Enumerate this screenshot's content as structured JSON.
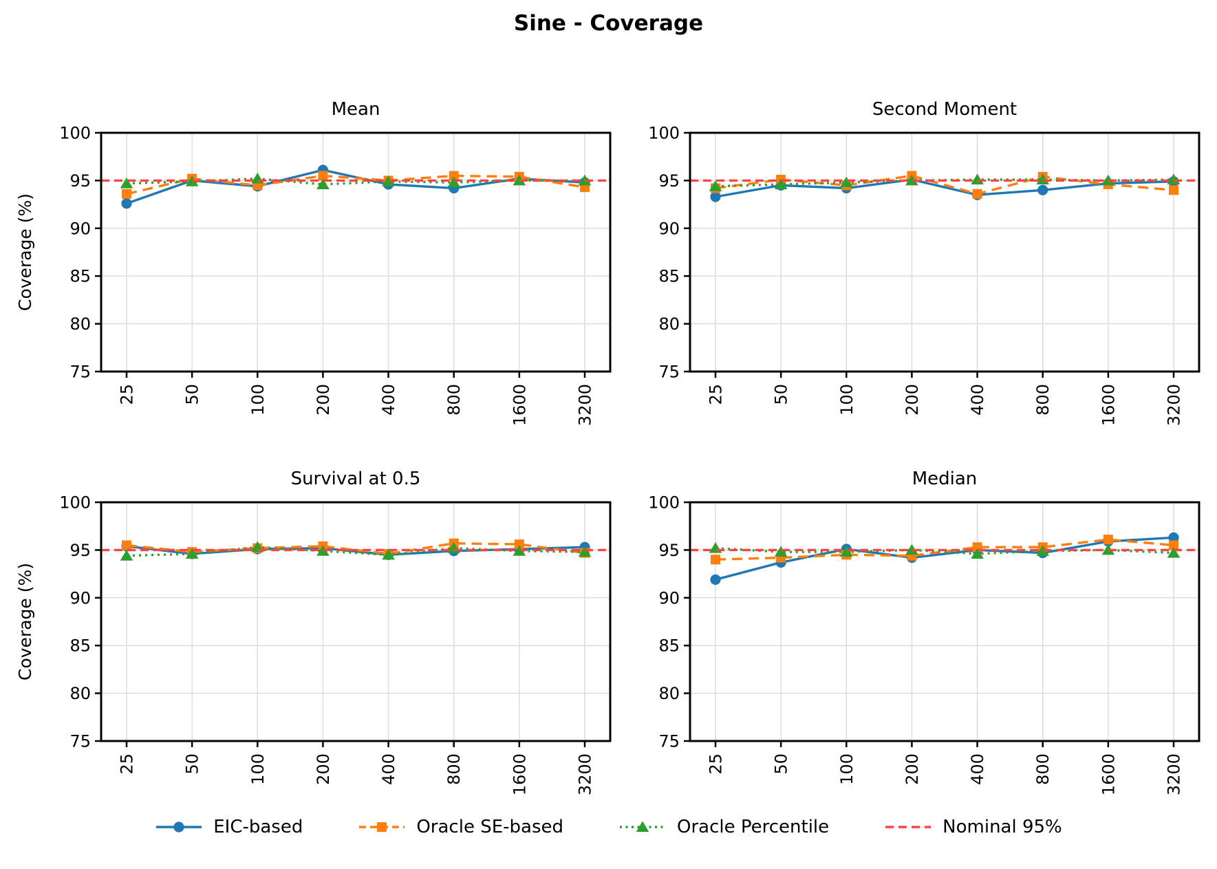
{
  "figure_title": "Sine - Coverage",
  "y_axis_label": "Coverage (%)",
  "colors": {
    "eic_based": "#1f77b4",
    "oracle_se_based": "#ff7f0e",
    "oracle_percentile": "#2ca02c",
    "nominal": "#ff4444",
    "grid": "#dcdcdc",
    "spine": "#000000",
    "text": "#000000",
    "background": "#ffffff"
  },
  "legend": {
    "items": [
      {
        "label": "EIC-based",
        "series": "eic_based",
        "marker": "circle",
        "linestyle": "solid"
      },
      {
        "label": "Oracle SE-based",
        "series": "oracle_se_based",
        "marker": "square",
        "linestyle": "dashed"
      },
      {
        "label": "Oracle Percentile",
        "series": "oracle_percentile",
        "marker": "triangle",
        "linestyle": "dotted"
      },
      {
        "label": "Nominal 95%",
        "series": "nominal",
        "marker": "none",
        "linestyle": "dashed"
      }
    ]
  },
  "chart_data": [
    {
      "type": "line",
      "title": "Mean",
      "position": "top-left",
      "show_ylabel": true,
      "ylabel": "Coverage (%)",
      "xlabel": "",
      "categories": [
        "25",
        "50",
        "100",
        "200",
        "400",
        "800",
        "1600",
        "3200"
      ],
      "ylim": [
        75,
        100
      ],
      "yticks": [
        75,
        80,
        85,
        90,
        95,
        100
      ],
      "grid": true,
      "nominal_line": {
        "label": "Nominal 95%",
        "value": 95
      },
      "series": [
        {
          "name": "EIC-based",
          "key": "eic_based",
          "marker": "circle",
          "linestyle": "solid",
          "values": [
            92.6,
            95.0,
            94.4,
            96.1,
            94.6,
            94.2,
            95.2,
            94.8
          ]
        },
        {
          "name": "Oracle SE-based",
          "key": "oracle_se_based",
          "marker": "square",
          "linestyle": "dashed",
          "values": [
            93.6,
            95.2,
            94.5,
            95.5,
            95.0,
            95.5,
            95.4,
            94.3
          ]
        },
        {
          "name": "Oracle Percentile",
          "key": "oracle_percentile",
          "marker": "triangle",
          "linestyle": "dotted",
          "values": [
            94.7,
            94.9,
            95.2,
            94.6,
            94.9,
            94.8,
            95.0,
            95.0
          ]
        }
      ]
    },
    {
      "type": "line",
      "title": "Second Moment",
      "position": "top-right",
      "show_ylabel": false,
      "ylabel": "Coverage (%)",
      "xlabel": "",
      "categories": [
        "25",
        "50",
        "100",
        "200",
        "400",
        "800",
        "1600",
        "3200"
      ],
      "ylim": [
        75,
        100
      ],
      "yticks": [
        75,
        80,
        85,
        90,
        95,
        100
      ],
      "grid": true,
      "nominal_line": {
        "label": "Nominal 95%",
        "value": 95
      },
      "series": [
        {
          "name": "EIC-based",
          "key": "eic_based",
          "marker": "circle",
          "linestyle": "solid",
          "values": [
            93.3,
            94.5,
            94.2,
            95.1,
            93.5,
            94.0,
            94.7,
            94.9
          ]
        },
        {
          "name": "Oracle SE-based",
          "key": "oracle_se_based",
          "marker": "square",
          "linestyle": "dashed",
          "values": [
            94.2,
            95.1,
            94.5,
            95.5,
            93.6,
            95.4,
            94.6,
            94.0
          ]
        },
        {
          "name": "Oracle Percentile",
          "key": "oracle_percentile",
          "marker": "triangle",
          "linestyle": "dotted",
          "values": [
            94.4,
            94.6,
            94.8,
            95.0,
            95.1,
            95.1,
            95.0,
            95.1
          ]
        }
      ]
    },
    {
      "type": "line",
      "title": "Survival at 0.5",
      "position": "bottom-left",
      "show_ylabel": true,
      "ylabel": "Coverage (%)",
      "xlabel": "",
      "categories": [
        "25",
        "50",
        "100",
        "200",
        "400",
        "800",
        "1600",
        "3200"
      ],
      "ylim": [
        75,
        100
      ],
      "yticks": [
        75,
        80,
        85,
        90,
        95,
        100
      ],
      "grid": true,
      "nominal_line": {
        "label": "Nominal 95%",
        "value": 95
      },
      "series": [
        {
          "name": "EIC-based",
          "key": "eic_based",
          "marker": "circle",
          "linestyle": "solid",
          "values": [
            95.4,
            94.6,
            95.1,
            95.2,
            94.5,
            94.9,
            95.1,
            95.3
          ]
        },
        {
          "name": "Oracle SE-based",
          "key": "oracle_se_based",
          "marker": "square",
          "linestyle": "dashed",
          "values": [
            95.5,
            94.8,
            95.2,
            95.4,
            94.6,
            95.7,
            95.6,
            94.7
          ]
        },
        {
          "name": "Oracle Percentile",
          "key": "oracle_percentile",
          "marker": "triangle",
          "linestyle": "dotted",
          "values": [
            94.4,
            94.6,
            95.3,
            94.9,
            94.5,
            95.2,
            94.9,
            94.8
          ]
        }
      ]
    },
    {
      "type": "line",
      "title": "Median",
      "position": "bottom-right",
      "show_ylabel": false,
      "ylabel": "Coverage (%)",
      "xlabel": "",
      "categories": [
        "25",
        "50",
        "100",
        "200",
        "400",
        "800",
        "1600",
        "3200"
      ],
      "ylim": [
        75,
        100
      ],
      "yticks": [
        75,
        80,
        85,
        90,
        95,
        100
      ],
      "grid": true,
      "nominal_line": {
        "label": "Nominal 95%",
        "value": 95
      },
      "series": [
        {
          "name": "EIC-based",
          "key": "eic_based",
          "marker": "circle",
          "linestyle": "solid",
          "values": [
            91.9,
            93.7,
            95.1,
            94.2,
            95.0,
            94.7,
            95.9,
            96.3
          ]
        },
        {
          "name": "Oracle SE-based",
          "key": "oracle_se_based",
          "marker": "square",
          "linestyle": "dashed",
          "values": [
            94.0,
            94.2,
            94.5,
            94.4,
            95.3,
            95.3,
            96.1,
            95.5
          ]
        },
        {
          "name": "Oracle Percentile",
          "key": "oracle_percentile",
          "marker": "triangle",
          "linestyle": "dotted",
          "values": [
            95.2,
            94.8,
            94.8,
            95.0,
            94.6,
            94.9,
            95.0,
            94.7
          ]
        }
      ]
    }
  ]
}
